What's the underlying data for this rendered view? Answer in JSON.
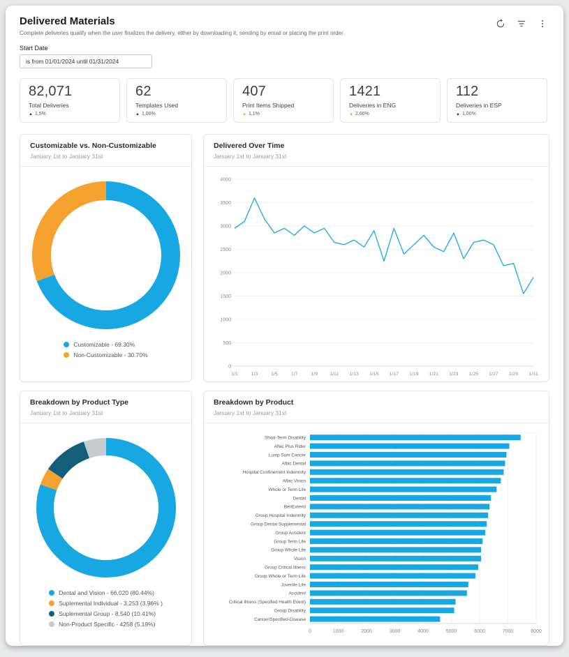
{
  "header": {
    "title": "Delivered Materials",
    "subtitle": "Complete deliveries qualify when the user finalizes the delivery, either by downloading it, sending by email or placing the print order.",
    "actions": [
      {
        "icon": "refresh-icon"
      },
      {
        "icon": "filter-icon"
      },
      {
        "icon": "kebab-menu-icon"
      }
    ]
  },
  "filter": {
    "label": "Start Date",
    "value": "is from 01/01/2024 until 01/31/2024"
  },
  "kpis": [
    {
      "value": "82,071",
      "label": "Total Deliveries",
      "arrow": "▲",
      "delta": "1,5%",
      "delta_color": "#3d3d3d"
    },
    {
      "value": "62",
      "label": "Templates Used",
      "arrow": "▲",
      "delta": "1,00%",
      "delta_color": "#3d3d3d"
    },
    {
      "value": "407",
      "label": "Print Items Shipped",
      "arrow": "▲",
      "delta": "1,1%",
      "delta_color": "#f59e2c"
    },
    {
      "value": "1421",
      "label": "Deliveries in ENG",
      "arrow": "▲",
      "delta": "2,00%",
      "delta_color": "#f59e2c"
    },
    {
      "value": "112",
      "label": "Deliveries in ESP",
      "arrow": "▲",
      "delta": "1,00%",
      "delta_color": "#3d3d3d"
    }
  ],
  "chart_data": [
    {
      "type": "pie",
      "donut": true,
      "title": "Customizable vs. Non-Customizable",
      "subtitle": "January 1st to January 31st",
      "labels": [
        "Customizable",
        "Non-Customizable"
      ],
      "values": [
        69.3,
        30.7
      ],
      "colors": [
        "#17a8e3",
        "#f5a12d"
      ],
      "legend": [
        "Customizable - 69.30%",
        "Non-Customizable - 30.70%"
      ],
      "legend_position": "bottom"
    },
    {
      "type": "line",
      "title": "Delivered Over Time",
      "subtitle": "January 1st to January 31st",
      "x": [
        "1/1",
        "1/2",
        "1/3",
        "1/4",
        "1/5",
        "1/6",
        "1/7",
        "1/8",
        "1/9",
        "1/10",
        "1/11",
        "1/12",
        "1/13",
        "1/14",
        "1/15",
        "1/16",
        "1/17",
        "1/18",
        "1/19",
        "1/20",
        "1/21",
        "1/22",
        "1/23",
        "1/24",
        "1/25",
        "1/26",
        "1/27",
        "1/28",
        "1/29",
        "1/30",
        "1/31"
      ],
      "values": [
        2950,
        3100,
        3600,
        3150,
        2850,
        2950,
        2800,
        3000,
        2850,
        2950,
        2650,
        2600,
        2700,
        2550,
        2900,
        2250,
        2950,
        2400,
        2600,
        2800,
        2550,
        2450,
        2850,
        2300,
        2650,
        2700,
        2600,
        2150,
        2200,
        1550,
        1900
      ],
      "ylim": [
        0,
        4000
      ],
      "yticks": [
        0,
        500,
        1000,
        1500,
        2000,
        2500,
        3000,
        3500,
        4000
      ],
      "xtick_labels": [
        "1/1",
        "1/3",
        "1/5",
        "1/7",
        "1/9",
        "1/11",
        "1/13",
        "1/15",
        "1/17",
        "1/19",
        "1/21",
        "1/23",
        "1/25",
        "1/27",
        "1/29",
        "1/31"
      ],
      "color": "#17a8e3",
      "grid": true
    },
    {
      "type": "pie",
      "donut": true,
      "title": "Breakdown by Product Type",
      "subtitle": "January 1st to January 31st",
      "labels": [
        "Dental and Vision",
        "Suplemental Individual",
        "Suplemental Group",
        "Non-Product Specific"
      ],
      "values": [
        80.44,
        3.96,
        10.41,
        5.19
      ],
      "colors": [
        "#17a8e3",
        "#f5a12d",
        "#135e79",
        "#c7cbce"
      ],
      "legend": [
        "Dental and Vision - 66,020 (80.44%)",
        "Suplemental Individual - 3,253 (3.96% )",
        "Suplemental Group - 8,540 (10.41%)",
        "Non-Product Specific - 4258 (5.19%)"
      ],
      "legend_position": "bottom"
    },
    {
      "type": "bar",
      "orientation": "horizontal",
      "title": "Breakdown by Product",
      "subtitle": "January 1st to January 31st",
      "categories": [
        "Short-Term Disability",
        "Aflac Plus Rider",
        "Lump Sum Cancer",
        "Aflac Dental",
        "Hospital Confinement Indemnity",
        "Aflac Vision",
        "Whole or Term Life",
        "Dental",
        "BenExtend",
        "Group Hospital Indemnity",
        "Group Dental Supplemental",
        "Group Accident",
        "Group Term Life",
        "Group Whole Life",
        "Vision",
        "Group Critical Illness",
        "Group Whole or Term Life",
        "Juvenile Life",
        "Accident",
        "Critical Illness (Specified Health Event)",
        "Group Disability",
        "Cancer/Specified-Disease"
      ],
      "values": [
        7450,
        7050,
        6950,
        6900,
        6850,
        6750,
        6600,
        6400,
        6350,
        6300,
        6250,
        6200,
        6100,
        6050,
        6050,
        5950,
        5850,
        5600,
        5550,
        5150,
        5100,
        4600
      ],
      "xlim": [
        0,
        8000
      ],
      "xticks": [
        0,
        1000,
        2000,
        3000,
        4000,
        5000,
        6000,
        7000,
        8000
      ],
      "color": "#17a8e3",
      "grid": true
    }
  ]
}
